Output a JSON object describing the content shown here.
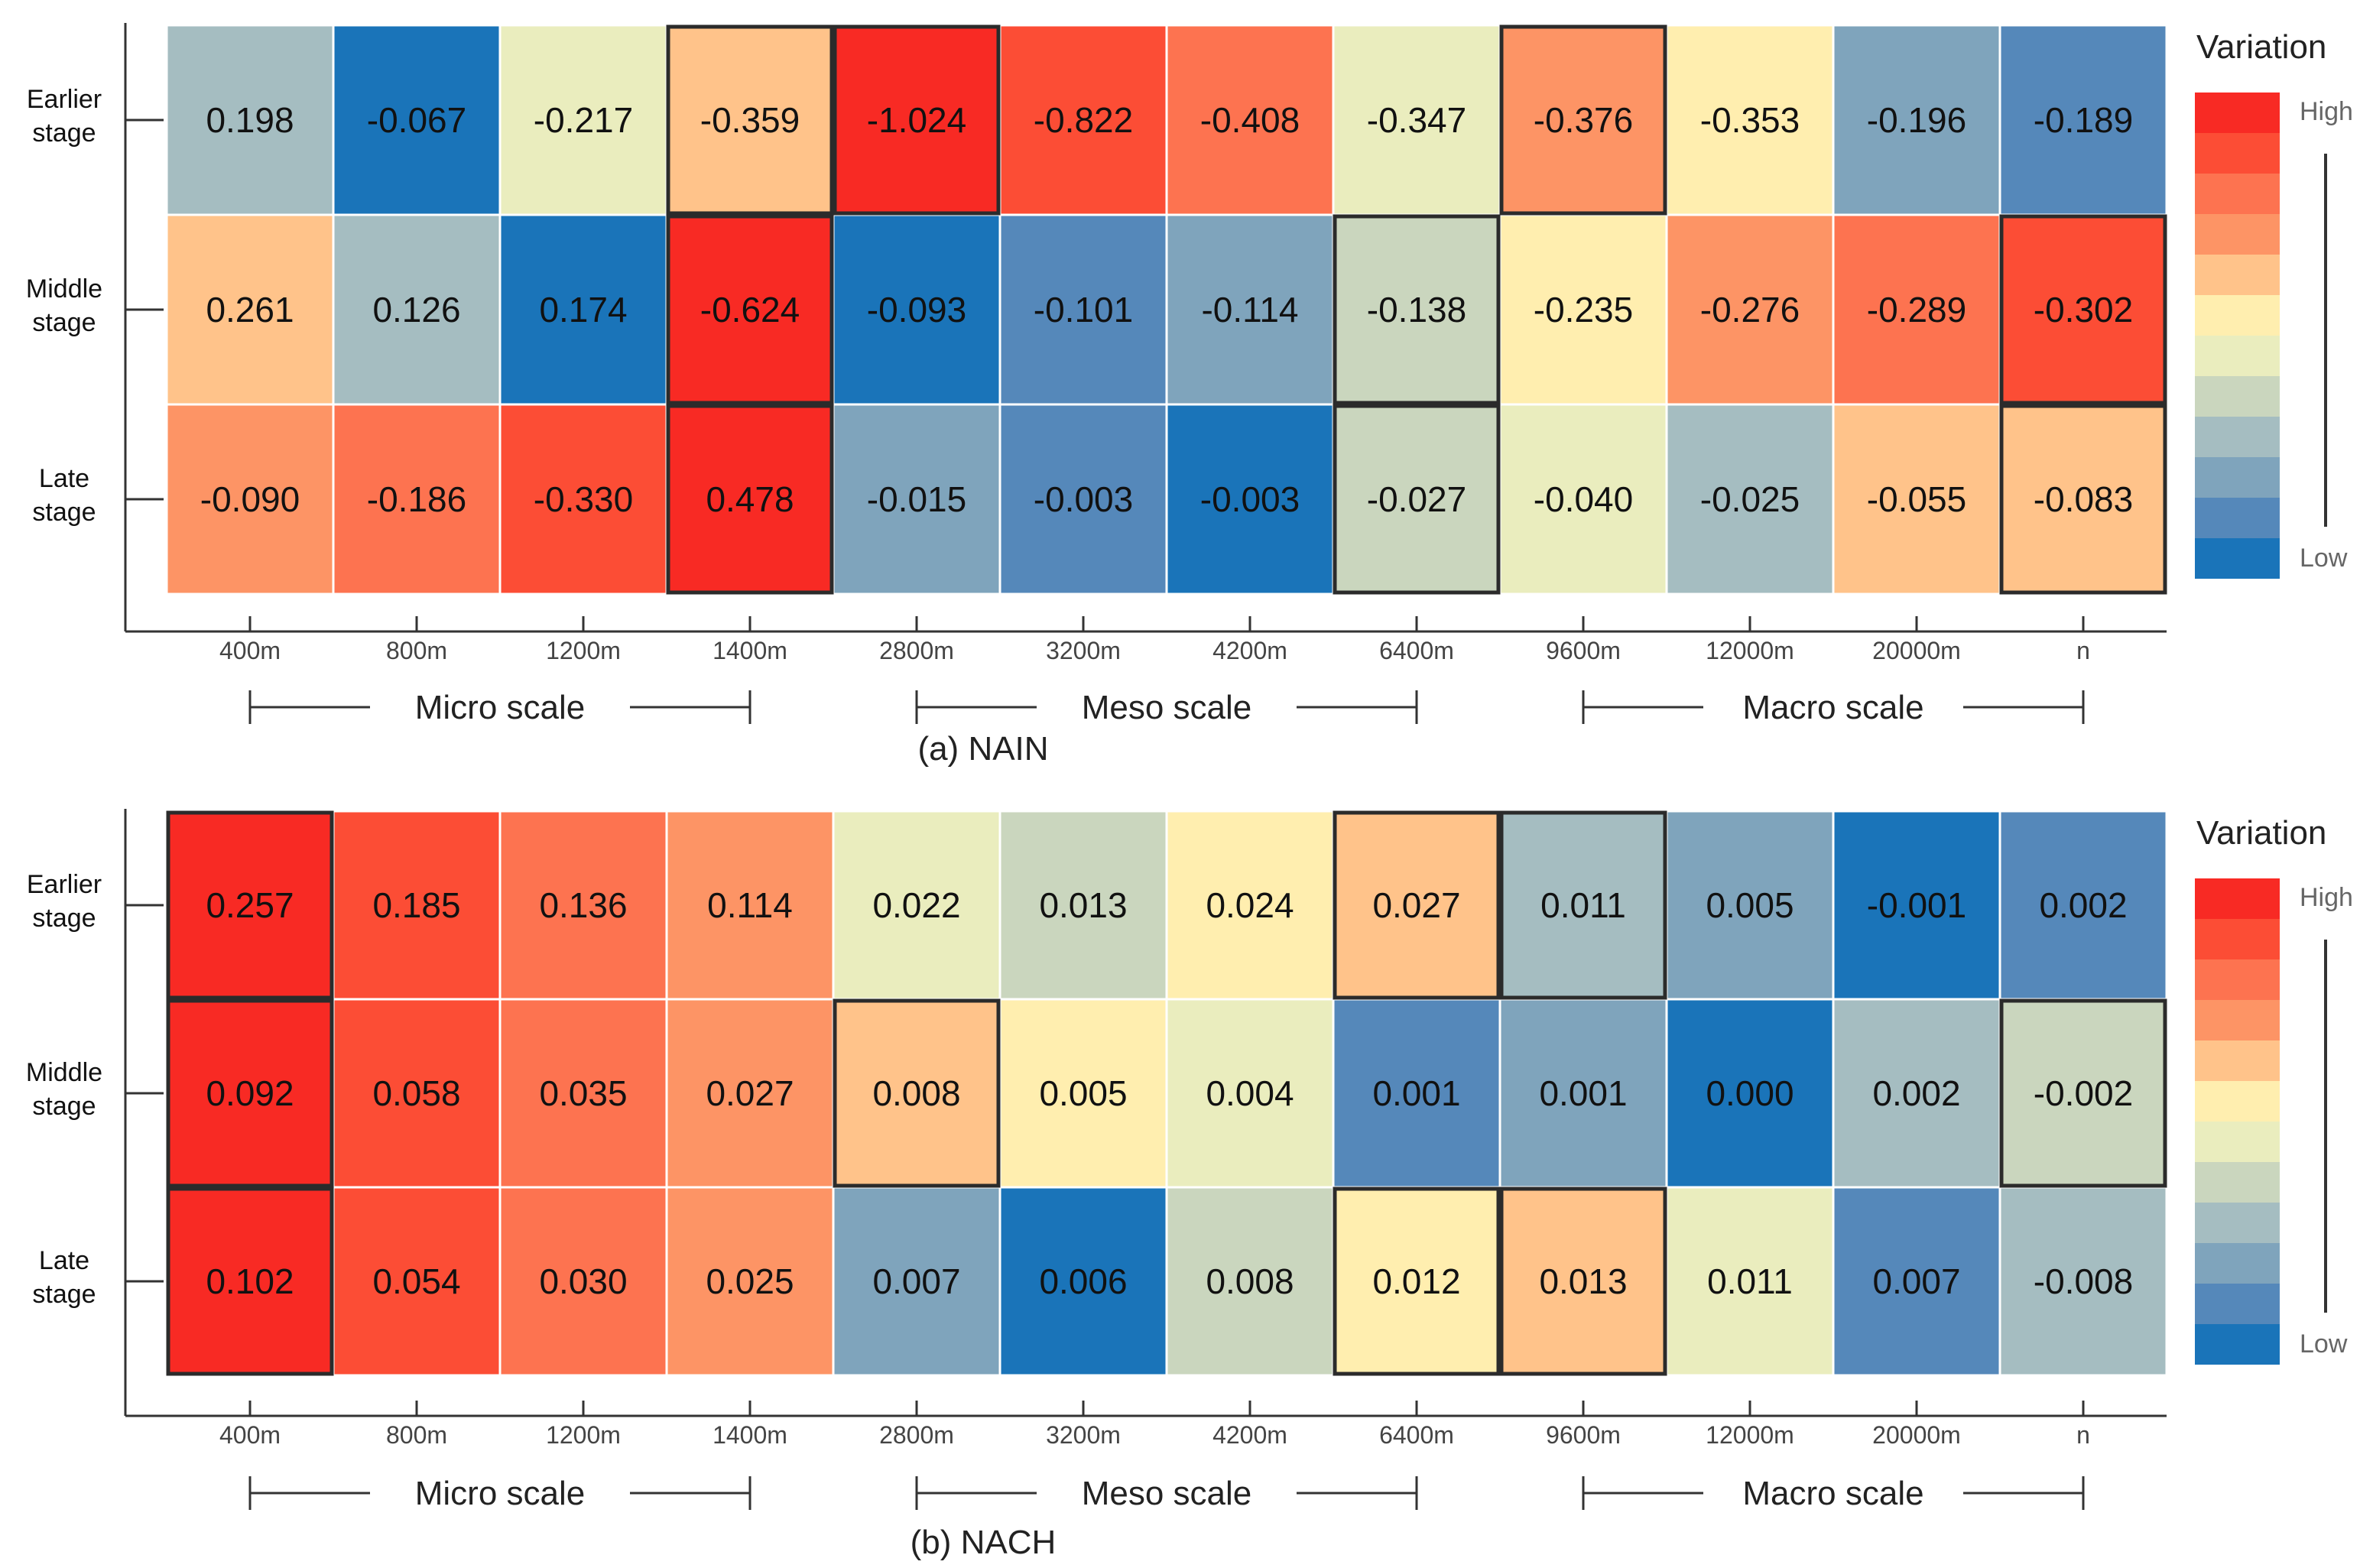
{
  "legend": {
    "colors": [
      "#F82A24",
      "#FC4D35",
      "#FD7350",
      "#FD9465",
      "#FFC38A",
      "#FFEEAF",
      "#EAEDBE",
      "#CAD6BE",
      "#A5BDC1",
      "#7FA4BC",
      "#5588BA",
      "#1A74B9"
    ],
    "text_color": "#111111"
  },
  "chart_data": [
    {
      "type": "heatmap",
      "title": "(a) NAIN",
      "legend_title": "Variation",
      "legend_high": "High",
      "legend_low": "Low",
      "rows": [
        [
          "Earlier",
          "stage"
        ],
        [
          "Middle",
          "stage"
        ],
        [
          "Late",
          "stage"
        ]
      ],
      "columns": [
        "400m",
        "800m",
        "1200m",
        "1400m",
        "2800m",
        "3200m",
        "4200m",
        "6400m",
        "9600m",
        "12000m",
        "20000m",
        "n"
      ],
      "values": [
        [
          "0.198",
          "-0.067",
          "-0.217",
          "-0.359",
          "-1.024",
          "-0.822",
          "-0.408",
          "-0.347",
          "-0.376",
          "-0.353",
          "-0.196",
          "-0.189"
        ],
        [
          "0.261",
          "0.126",
          "0.174",
          "-0.624",
          "-0.093",
          "-0.101",
          "-0.114",
          "-0.138",
          "-0.235",
          "-0.276",
          "-0.289",
          "-0.302"
        ],
        [
          "-0.090",
          "-0.186",
          "-0.330",
          "0.478",
          "-0.015",
          "-0.003",
          "-0.003",
          "-0.027",
          "-0.040",
          "-0.025",
          "-0.055",
          "-0.083"
        ]
      ],
      "color_levels": [
        [
          8,
          11,
          6,
          4,
          0,
          1,
          2,
          6,
          3,
          5,
          9,
          10
        ],
        [
          4,
          8,
          11,
          0,
          11,
          10,
          9,
          7,
          5,
          3,
          2,
          1
        ],
        [
          3,
          2,
          1,
          0,
          9,
          10,
          11,
          7,
          6,
          8,
          4,
          4
        ]
      ],
      "highlighted": [
        [
          0,
          3
        ],
        [
          0,
          4
        ],
        [
          0,
          8
        ],
        [
          1,
          3
        ],
        [
          1,
          7
        ],
        [
          1,
          11
        ],
        [
          2,
          3
        ],
        [
          2,
          7
        ],
        [
          2,
          11
        ]
      ],
      "scale_groups": [
        {
          "label": "Micro scale",
          "from": 0,
          "to": 3
        },
        {
          "label": "Meso scale",
          "from": 4,
          "to": 7
        },
        {
          "label": "Macro scale",
          "from": 8,
          "to": 11
        }
      ]
    },
    {
      "type": "heatmap",
      "title": "(b) NACH",
      "legend_title": "Variation",
      "legend_high": "High",
      "legend_low": "Low",
      "rows": [
        [
          "Earlier",
          "stage"
        ],
        [
          "Middle",
          "stage"
        ],
        [
          "Late",
          "stage"
        ]
      ],
      "columns": [
        "400m",
        "800m",
        "1200m",
        "1400m",
        "2800m",
        "3200m",
        "4200m",
        "6400m",
        "9600m",
        "12000m",
        "20000m",
        "n"
      ],
      "values": [
        [
          "0.257",
          "0.185",
          "0.136",
          "0.114",
          "0.022",
          "0.013",
          "0.024",
          "0.027",
          "0.011",
          "0.005",
          "-0.001",
          "0.002"
        ],
        [
          "0.092",
          "0.058",
          "0.035",
          "0.027",
          "0.008",
          "0.005",
          "0.004",
          "0.001",
          "0.001",
          "0.000",
          "0.002",
          "-0.002"
        ],
        [
          "0.102",
          "0.054",
          "0.030",
          "0.025",
          "0.007",
          "0.006",
          "0.008",
          "0.012",
          "0.013",
          "0.011",
          "0.007",
          "-0.008"
        ]
      ],
      "color_levels": [
        [
          0,
          1,
          2,
          3,
          6,
          7,
          5,
          4,
          8,
          9,
          11,
          10
        ],
        [
          0,
          1,
          2,
          3,
          4,
          5,
          6,
          10,
          9,
          11,
          8,
          7
        ],
        [
          0,
          1,
          2,
          3,
          9,
          11,
          7,
          5,
          4,
          6,
          10,
          8
        ]
      ],
      "highlighted": [
        [
          0,
          0
        ],
        [
          0,
          7
        ],
        [
          0,
          8
        ],
        [
          1,
          0
        ],
        [
          1,
          4
        ],
        [
          1,
          11
        ],
        [
          2,
          0
        ],
        [
          2,
          7
        ],
        [
          2,
          8
        ]
      ],
      "scale_groups": [
        {
          "label": "Micro scale",
          "from": 0,
          "to": 3
        },
        {
          "label": "Meso scale",
          "from": 4,
          "to": 7
        },
        {
          "label": "Macro scale",
          "from": 8,
          "to": 11
        }
      ]
    }
  ]
}
